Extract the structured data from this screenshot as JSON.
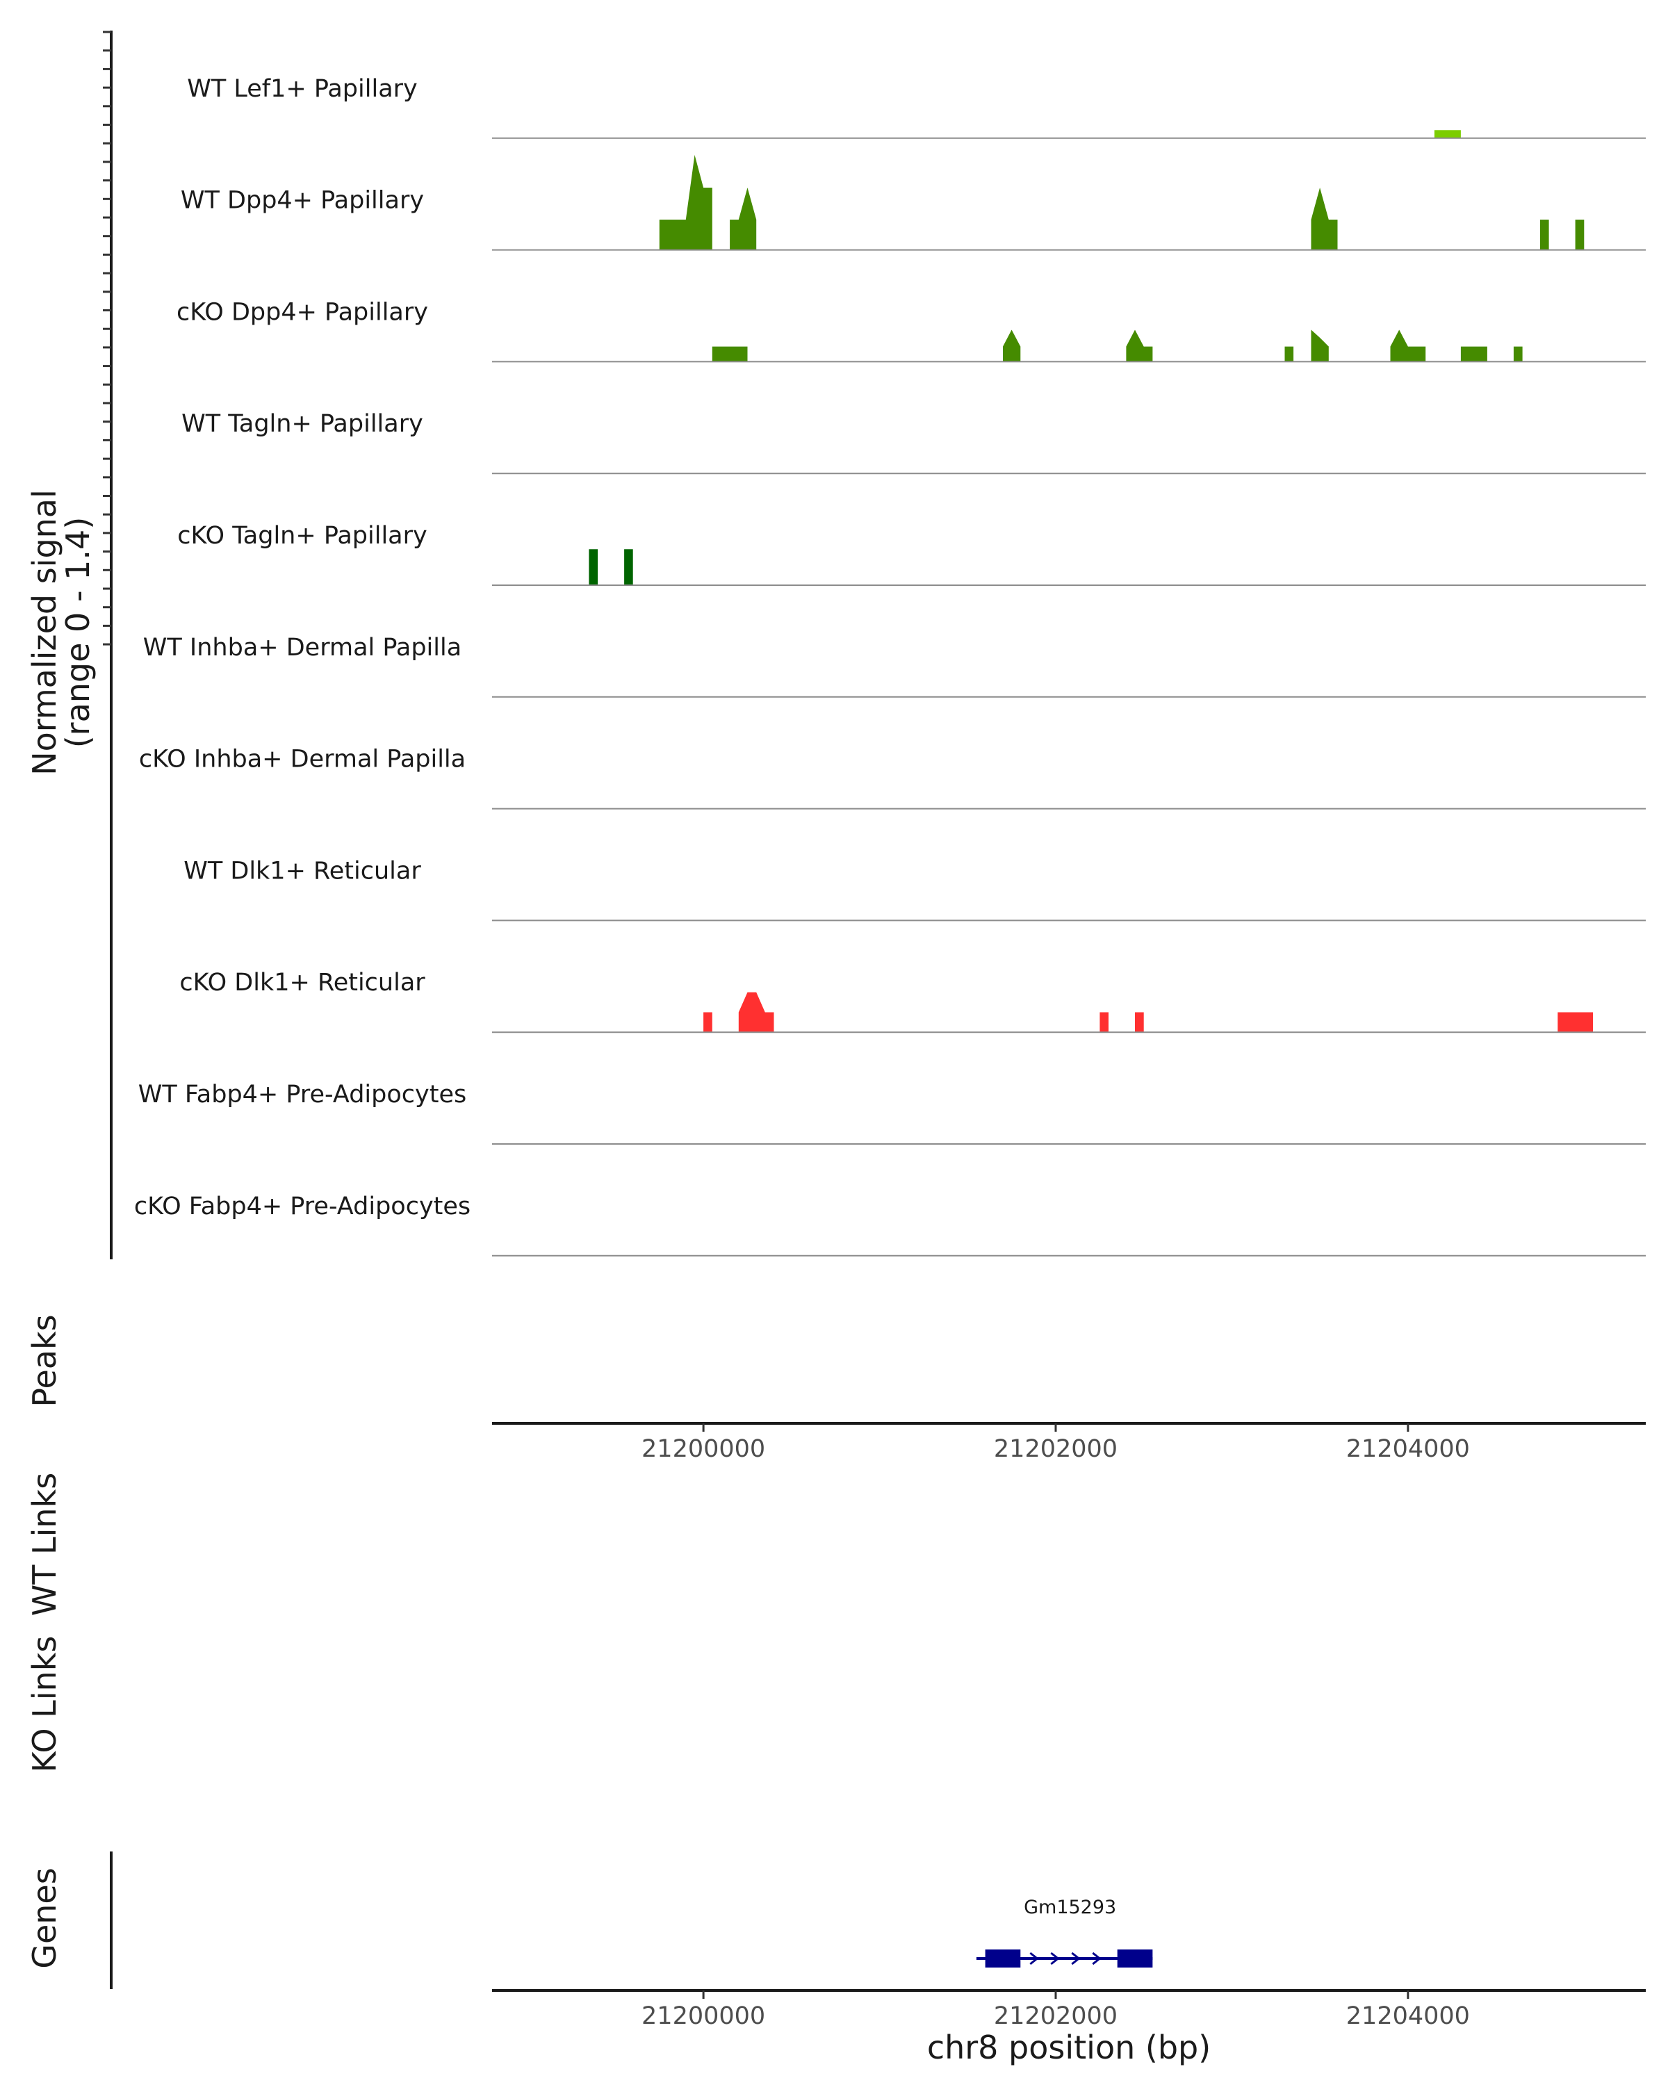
{
  "chart_data": {
    "type": "area",
    "title": "",
    "xlabel": "chr8 position (bp)",
    "ylabel": "Normalized signal",
    "ylabel_range": "(range 0 - 1.4)",
    "yrange": [
      0,
      1.4
    ],
    "xlim": [
      21198800,
      21205350
    ],
    "x_ticks": [
      21200000,
      21202000,
      21204000
    ],
    "x_tick_labels": [
      "21200000",
      "21202000",
      "21204000"
    ],
    "bin_width": 50,
    "tracks": [
      {
        "name": "WT Lef1+ Papillary",
        "color": "#7CCD00",
        "points": [
          [
            21204150,
            0.1
          ],
          [
            21204200,
            0.1
          ],
          [
            21204250,
            0.1
          ],
          [
            21204300,
            0.1
          ]
        ]
      },
      {
        "name": "WT Dpp4+ Papillary",
        "color": "#458B00",
        "points": [
          [
            21199750,
            0.38
          ],
          [
            21199800,
            0.38
          ],
          [
            21199850,
            0.38
          ],
          [
            21199900,
            0.38
          ],
          [
            21199950,
            1.19
          ],
          [
            21200000,
            0.78
          ],
          [
            21200050,
            0.78
          ],
          [
            21200150,
            0.38
          ],
          [
            21200200,
            0.38
          ],
          [
            21200250,
            0.78
          ],
          [
            21200300,
            0.38
          ],
          [
            21203450,
            0.38
          ],
          [
            21203500,
            0.78
          ],
          [
            21203550,
            0.38
          ],
          [
            21203600,
            0.38
          ],
          [
            21204750,
            0.38
          ],
          [
            21204800,
            0.38
          ],
          [
            21204950,
            0.38
          ],
          [
            21205000,
            0.38
          ]
        ]
      },
      {
        "name": "cKO Dpp4+ Papillary",
        "color": "#458B00",
        "points": [
          [
            21200050,
            0.19
          ],
          [
            21200100,
            0.19
          ],
          [
            21200150,
            0.19
          ],
          [
            21200200,
            0.19
          ],
          [
            21200250,
            0.19
          ],
          [
            21201700,
            0.19
          ],
          [
            21201750,
            0.4
          ],
          [
            21201800,
            0.19
          ],
          [
            21202400,
            0.19
          ],
          [
            21202450,
            0.4
          ],
          [
            21202500,
            0.19
          ],
          [
            21202550,
            0.19
          ],
          [
            21203300,
            0.19
          ],
          [
            21203350,
            0.19
          ],
          [
            21203450,
            0.4
          ],
          [
            21203500,
            0.3
          ],
          [
            21203550,
            0.19
          ],
          [
            21203900,
            0.19
          ],
          [
            21203950,
            0.4
          ],
          [
            21204000,
            0.19
          ],
          [
            21204050,
            0.19
          ],
          [
            21204100,
            0.19
          ],
          [
            21204300,
            0.19
          ],
          [
            21204350,
            0.19
          ],
          [
            21204400,
            0.19
          ],
          [
            21204450,
            0.19
          ],
          [
            21204600,
            0.19
          ],
          [
            21204650,
            0.19
          ]
        ]
      },
      {
        "name": "WT Tagln+ Papillary",
        "color": "#458B00",
        "points": []
      },
      {
        "name": "cKO Tagln+ Papillary",
        "color": "#006400",
        "points": [
          [
            21199350,
            0.45
          ],
          [
            21199400,
            0.45
          ],
          [
            21199550,
            0.45
          ],
          [
            21199600,
            0.45
          ]
        ]
      },
      {
        "name": "WT Inhba+ Dermal Papilla",
        "color": "#006400",
        "points": []
      },
      {
        "name": "cKO Inhba+ Dermal Papilla",
        "color": "#006400",
        "points": []
      },
      {
        "name": "WT Dlk1+ Reticular",
        "color": "#FF3030",
        "points": []
      },
      {
        "name": "cKO Dlk1+ Reticular",
        "color": "#FF3030",
        "points": [
          [
            21200000,
            0.25
          ],
          [
            21200050,
            0.25
          ],
          [
            21200200,
            0.25
          ],
          [
            21200250,
            0.5
          ],
          [
            21200300,
            0.5
          ],
          [
            21200350,
            0.25
          ],
          [
            21200400,
            0.25
          ],
          [
            21202250,
            0.25
          ],
          [
            21202300,
            0.25
          ],
          [
            21202450,
            0.25
          ],
          [
            21202500,
            0.25
          ],
          [
            21204850,
            0.25
          ],
          [
            21204900,
            0.25
          ],
          [
            21204950,
            0.25
          ],
          [
            21205000,
            0.25
          ],
          [
            21205050,
            0.25
          ]
        ]
      },
      {
        "name": "WT Fabp4+ Pre-Adipocytes",
        "color": "#FF3030",
        "points": []
      },
      {
        "name": "cKO Fabp4+ Pre-Adipocytes",
        "color": "#FF3030",
        "points": []
      }
    ],
    "panels": [
      "Peaks",
      "WT Links",
      "KO Links",
      "Genes"
    ],
    "gene": {
      "name": "Gm15293",
      "color": "#00008B",
      "start": 21201550,
      "end": 21202550,
      "exons": [
        [
          21201600,
          21201800
        ],
        [
          21202350,
          21202550
        ]
      ]
    }
  }
}
